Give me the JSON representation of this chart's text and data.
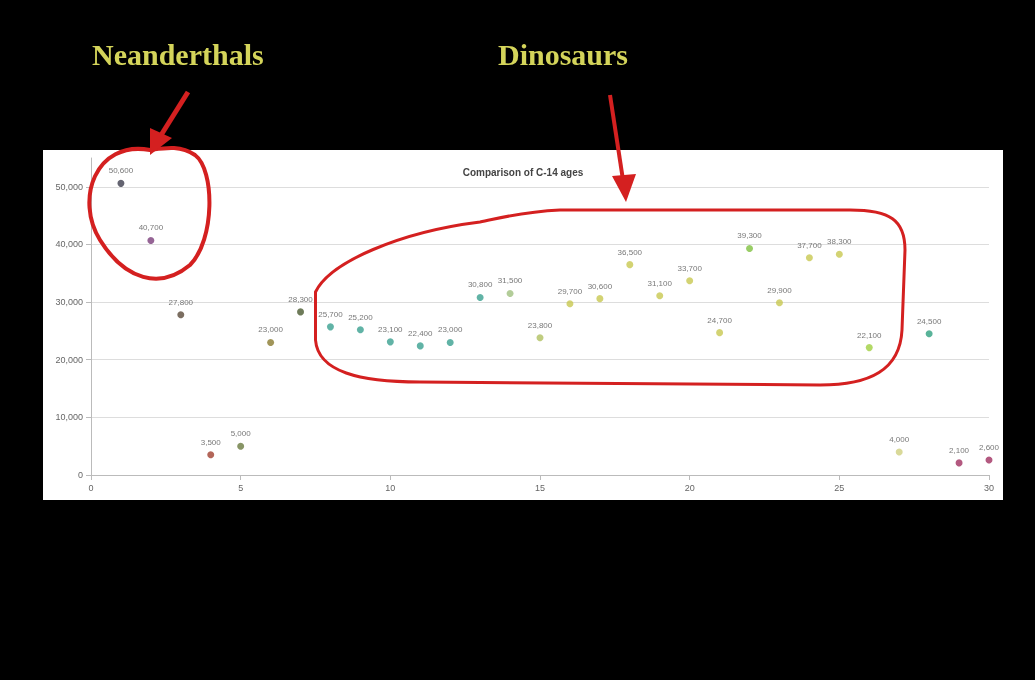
{
  "chart_data": {
    "type": "scatter",
    "title": "Comparison of C-14 ages",
    "x": [
      1,
      2,
      3,
      4,
      5,
      6,
      7,
      8,
      9,
      10,
      11,
      12,
      13,
      14,
      15,
      16,
      17,
      18,
      19,
      20,
      21,
      22,
      23,
      24,
      25,
      26,
      27,
      28,
      29,
      30
    ],
    "values": [
      50600,
      40700,
      27800,
      3500,
      5000,
      23000,
      28300,
      25700,
      25200,
      23100,
      22400,
      23000,
      30800,
      31500,
      23800,
      29700,
      30600,
      36500,
      31100,
      33700,
      24700,
      39300,
      29900,
      37700,
      38300,
      22100,
      4000,
      24500,
      2100,
      2600
    ],
    "colors": [
      "#3d3d4d",
      "#7a3d7a",
      "#5a4a3a",
      "#a04030",
      "#6a7a40",
      "#8a7a30",
      "#4a5a30",
      "#3aa090",
      "#3aa090",
      "#3aa090",
      "#3aa090",
      "#3aa090",
      "#3aa090",
      "#a0c080",
      "#b0c060",
      "#c8c850",
      "#c8c850",
      "#c8c850",
      "#c8c850",
      "#c8c850",
      "#c8c850",
      "#80c040",
      "#c8c850",
      "#c8c850",
      "#c8c850",
      "#a0d040",
      "#d0d080",
      "#30a080",
      "#a03060",
      "#a03060"
    ],
    "xlim": [
      0,
      30
    ],
    "xticks": [
      0,
      5,
      10,
      15,
      20,
      25,
      30
    ],
    "ylim": [
      0,
      55000
    ],
    "yticks": [
      {
        "value": 0,
        "label": "0"
      },
      {
        "value": 10000,
        "label": "10,000"
      },
      {
        "value": 20000,
        "label": "20,000"
      },
      {
        "value": 30000,
        "label": "30,000"
      },
      {
        "value": 40000,
        "label": "40,000"
      },
      {
        "value": 50000,
        "label": "50,000"
      }
    ],
    "value_labels": [
      "50,600",
      "40,700",
      "27,800",
      "3,500",
      "5,000",
      "23,000",
      "28,300",
      "25,700",
      "25,200",
      "23,100",
      "22,400",
      "23,000",
      "30,800",
      "31,500",
      "23,800",
      "29,700",
      "30,600",
      "36,500",
      "31,100",
      "33,700",
      "24,700",
      "39,300",
      "29,900",
      "37,700",
      "38,300",
      "22,100",
      "4,000",
      "24,500",
      "2,100",
      "2,600"
    ],
    "grid": "y",
    "marker": "circle",
    "annotations": [
      "Neanderthals",
      "Dinosaurs"
    ]
  }
}
